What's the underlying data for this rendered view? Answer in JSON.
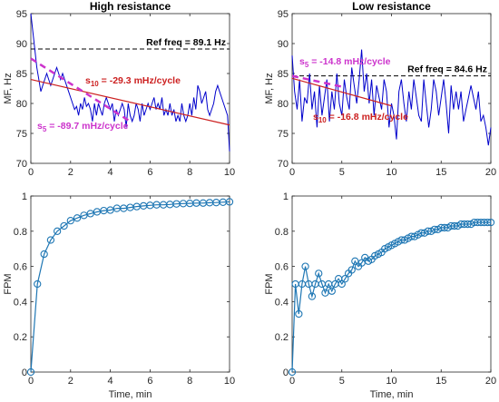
{
  "colors": {
    "signal": "#0000cc",
    "fpm": "#1f77b4",
    "slope10": "#cc2020",
    "slope5": "#cc33cc",
    "ref": "#000000"
  },
  "chart_data": [
    {
      "id": "tl",
      "type": "line",
      "title": "High resistance",
      "ylabel": "MF, Hz",
      "xlabel": "",
      "xlim": [
        0,
        10
      ],
      "ylim": [
        70,
        95
      ],
      "xticks": [
        0,
        2,
        4,
        6,
        8,
        10
      ],
      "yticks": [
        70,
        75,
        80,
        85,
        90,
        95
      ],
      "ref_freq": 89.1,
      "ref_label": "Ref freq = 89.1 Hz",
      "annot10": {
        "base": "s",
        "sub": "10",
        "text": " = -29.3 mHz/cycle"
      },
      "annot5": {
        "base": "s",
        "sub": "5",
        "text": " = -89.7 mHz/cycle"
      },
      "fit10": {
        "x": [
          0,
          10
        ],
        "y": [
          84.0,
          76.4
        ]
      },
      "fit5": {
        "x": [
          0,
          5
        ],
        "y": [
          87.5,
          77.0
        ]
      },
      "series": [
        {
          "values_x": [
            0,
            0.1,
            0.2,
            0.3,
            0.4,
            0.5,
            0.6,
            0.7,
            0.8,
            0.9,
            1.0,
            1.1,
            1.2,
            1.3,
            1.4,
            1.5,
            1.6,
            1.7,
            1.8,
            1.9,
            2.0,
            2.1,
            2.2,
            2.3,
            2.4,
            2.5,
            2.6,
            2.7,
            2.8,
            2.9,
            3.0,
            3.1,
            3.2,
            3.3,
            3.4,
            3.5,
            3.6,
            3.7,
            3.8,
            3.9,
            4.0,
            4.1,
            4.2,
            4.3,
            4.4,
            4.5,
            4.6,
            4.7,
            4.8,
            4.9,
            5.0,
            5.1,
            5.2,
            5.3,
            5.4,
            5.5,
            5.6,
            5.7,
            5.8,
            5.9,
            6.0,
            6.1,
            6.2,
            6.3,
            6.4,
            6.5,
            6.6,
            6.7,
            6.8,
            6.9,
            7.0,
            7.1,
            7.2,
            7.3,
            7.4,
            7.5,
            7.6,
            7.7,
            7.8,
            7.9,
            8.0,
            8.1,
            8.2,
            8.3,
            8.4,
            8.5,
            8.6,
            8.7,
            8.8,
            8.9,
            9.0,
            9.1,
            9.2,
            9.3,
            9.4,
            9.5,
            9.6,
            9.7,
            9.8,
            9.9,
            10.0
          ],
          "values_y": [
            95,
            92,
            89,
            86,
            84,
            82,
            83,
            84,
            85,
            84,
            83,
            84,
            85,
            86,
            85,
            84,
            85,
            84,
            83,
            82,
            81,
            80,
            79,
            79.5,
            78,
            80,
            79,
            81,
            79.5,
            80,
            79,
            77,
            80,
            78,
            80,
            79,
            78,
            80,
            81,
            80,
            79,
            80,
            77,
            79,
            78,
            79,
            80,
            79,
            76,
            80,
            78,
            77,
            78,
            80,
            79,
            77,
            80,
            78,
            79,
            80,
            79,
            80,
            81,
            79,
            80,
            79,
            81,
            78,
            79,
            78,
            80,
            78,
            79,
            77,
            78,
            77,
            80,
            78,
            77,
            78,
            80,
            78,
            81,
            79,
            83,
            82,
            80,
            81,
            82,
            79,
            78,
            79,
            80,
            82,
            83,
            82,
            81,
            80,
            79,
            78,
            72
          ]
        }
      ]
    },
    {
      "id": "tr",
      "type": "line",
      "title": "Low resistance",
      "ylabel": "MF, Hz",
      "xlabel": "",
      "xlim": [
        0,
        20
      ],
      "ylim": [
        70,
        95
      ],
      "xticks": [
        0,
        5,
        10,
        15,
        20
      ],
      "yticks": [
        70,
        75,
        80,
        85,
        90,
        95
      ],
      "ref_freq": 84.6,
      "ref_label": "Ref freq = 84.6 Hz",
      "annot10": {
        "base": "s",
        "sub": "10",
        "text": " = -16.8 mHz/cycle"
      },
      "annot5": {
        "base": "s",
        "sub": "5",
        "text": " = -14.8 mHz/cycle"
      },
      "fit10": {
        "x": [
          0,
          10
        ],
        "y": [
          84.2,
          79.6
        ]
      },
      "fit5": {
        "x": [
          0,
          5
        ],
        "y": [
          84.6,
          82.8
        ]
      },
      "series": [
        {
          "values_x": [
            0,
            0.25,
            0.5,
            0.75,
            1,
            1.25,
            1.5,
            1.75,
            2,
            2.25,
            2.5,
            2.75,
            3,
            3.25,
            3.5,
            3.75,
            4,
            4.25,
            4.5,
            4.75,
            5,
            5.25,
            5.5,
            5.75,
            6,
            6.25,
            6.5,
            6.75,
            7,
            7.25,
            7.5,
            7.75,
            8,
            8.25,
            8.5,
            8.75,
            9,
            9.25,
            9.5,
            9.75,
            10,
            10.25,
            10.5,
            10.75,
            11,
            11.25,
            11.5,
            11.75,
            12,
            12.25,
            12.5,
            12.75,
            13,
            13.25,
            13.5,
            13.75,
            14,
            14.25,
            14.5,
            14.75,
            15,
            15.25,
            15.5,
            15.75,
            16,
            16.25,
            16.5,
            16.75,
            17,
            17.25,
            17.5,
            17.75,
            18,
            18.25,
            18.5,
            18.75,
            19,
            19.25,
            19.5,
            19.75,
            20
          ],
          "values_y": [
            88,
            82,
            79,
            84,
            77,
            81,
            80,
            85,
            79,
            82,
            76,
            83,
            78,
            81,
            84,
            77,
            82,
            79,
            85,
            80,
            78,
            84,
            81,
            79,
            86,
            83,
            80,
            84,
            89,
            82,
            85,
            80,
            84,
            78,
            83,
            81,
            79,
            84,
            82,
            76,
            80,
            78,
            74,
            82,
            84,
            80,
            77,
            82,
            79,
            84,
            81,
            78,
            77,
            84,
            80,
            76,
            79,
            84,
            82,
            78,
            81,
            84,
            80,
            75,
            83,
            79,
            82,
            79,
            82,
            77,
            79,
            81,
            83,
            81,
            79,
            82,
            77,
            78,
            76,
            73,
            76
          ]
        }
      ]
    },
    {
      "id": "bl",
      "type": "line",
      "title": "",
      "ylabel": "FPM",
      "xlabel": "Time, min",
      "xlim": [
        0,
        10
      ],
      "ylim": [
        0,
        1
      ],
      "xticks": [
        0,
        2,
        4,
        6,
        8,
        10
      ],
      "yticks": [
        0,
        0.2,
        0.4,
        0.6,
        0.8,
        1
      ],
      "ytick_labels": [
        "0",
        "0.2",
        "0.4",
        "0.6",
        "0.8",
        "1"
      ],
      "series": [
        {
          "values_x": [
            0,
            0.33,
            0.67,
            1.0,
            1.33,
            1.67,
            2.0,
            2.33,
            2.67,
            3.0,
            3.33,
            3.67,
            4.0,
            4.33,
            4.67,
            5.0,
            5.33,
            5.67,
            6.0,
            6.33,
            6.67,
            7.0,
            7.33,
            7.67,
            8.0,
            8.33,
            8.67,
            9.0,
            9.33,
            9.67,
            10.0
          ],
          "values_y": [
            0,
            0.5,
            0.67,
            0.75,
            0.8,
            0.83,
            0.86,
            0.875,
            0.89,
            0.9,
            0.91,
            0.917,
            0.92,
            0.93,
            0.93,
            0.935,
            0.94,
            0.944,
            0.947,
            0.95,
            0.95,
            0.952,
            0.955,
            0.957,
            0.958,
            0.96,
            0.96,
            0.962,
            0.963,
            0.965,
            0.967
          ]
        }
      ]
    },
    {
      "id": "br",
      "type": "line",
      "title": "",
      "ylabel": "FPM",
      "xlabel": "Time, min",
      "xlim": [
        0,
        20
      ],
      "ylim": [
        0,
        1
      ],
      "xticks": [
        0,
        5,
        10,
        15,
        20
      ],
      "yticks": [
        0,
        0.2,
        0.4,
        0.6,
        0.8,
        1
      ],
      "ytick_labels": [
        "0",
        "0.2",
        "0.4",
        "0.6",
        "0.8",
        "1"
      ],
      "series": [
        {
          "values_x": [
            0,
            0.33,
            0.67,
            1.0,
            1.33,
            1.67,
            2.0,
            2.33,
            2.67,
            3.0,
            3.33,
            3.67,
            4.0,
            4.33,
            4.67,
            5.0,
            5.33,
            5.67,
            6.0,
            6.33,
            6.67,
            7.0,
            7.33,
            7.67,
            8.0,
            8.33,
            8.67,
            9.0,
            9.33,
            9.67,
            10.0,
            10.33,
            10.67,
            11.0,
            11.33,
            11.67,
            12.0,
            12.33,
            12.67,
            13.0,
            13.33,
            13.67,
            14.0,
            14.33,
            14.67,
            15.0,
            15.33,
            15.67,
            16.0,
            16.33,
            16.67,
            17.0,
            17.33,
            17.67,
            18.0,
            18.33,
            18.67,
            19.0,
            19.33,
            19.67,
            20.0
          ],
          "values_y": [
            0,
            0.5,
            0.33,
            0.5,
            0.6,
            0.5,
            0.43,
            0.5,
            0.56,
            0.5,
            0.45,
            0.5,
            0.46,
            0.5,
            0.53,
            0.5,
            0.53,
            0.56,
            0.58,
            0.63,
            0.6,
            0.62,
            0.65,
            0.63,
            0.64,
            0.66,
            0.67,
            0.68,
            0.7,
            0.71,
            0.72,
            0.73,
            0.74,
            0.75,
            0.75,
            0.76,
            0.77,
            0.77,
            0.78,
            0.79,
            0.79,
            0.8,
            0.8,
            0.81,
            0.81,
            0.82,
            0.82,
            0.82,
            0.83,
            0.83,
            0.83,
            0.84,
            0.84,
            0.84,
            0.84,
            0.85,
            0.85,
            0.85,
            0.85,
            0.85,
            0.85
          ]
        }
      ]
    }
  ]
}
